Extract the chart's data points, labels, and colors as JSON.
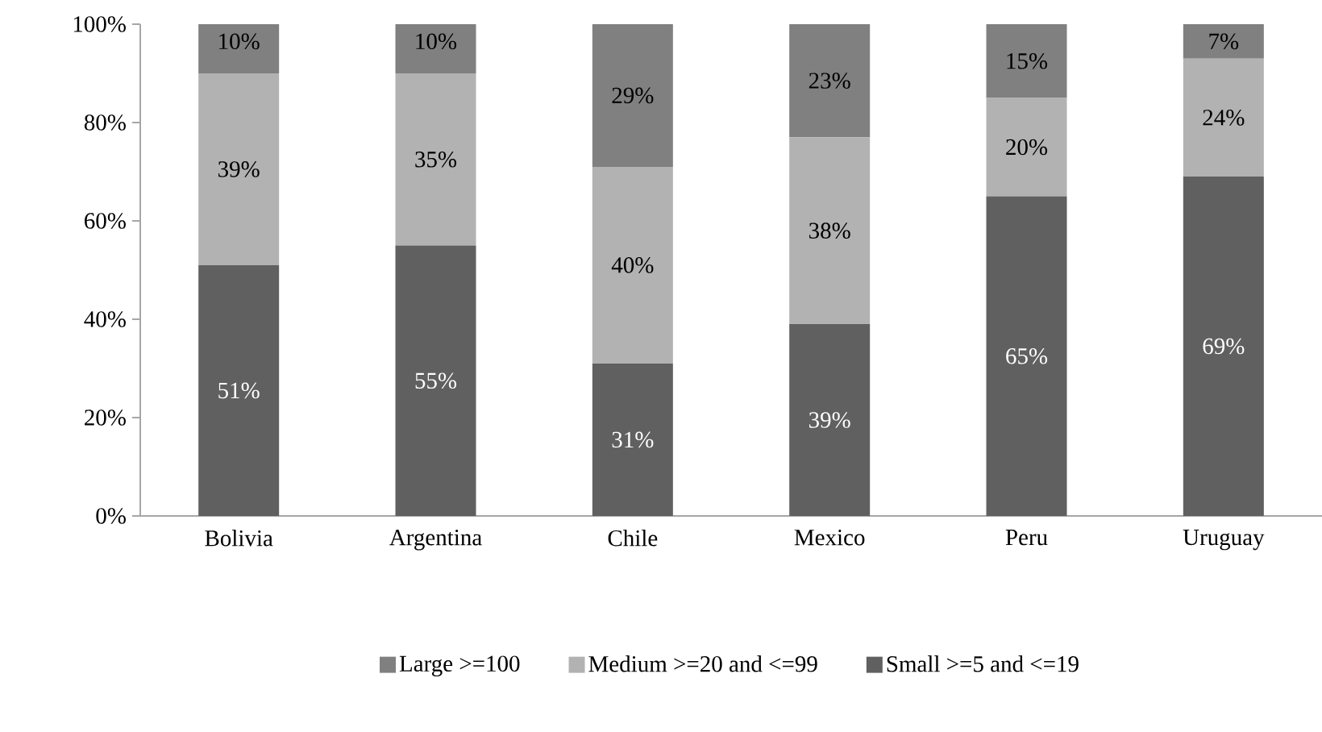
{
  "chart_data": {
    "type": "bar",
    "stacked": true,
    "categories": [
      "Bolivia",
      "Argentina",
      "Chile",
      "Mexico",
      "Peru",
      "Uruguay"
    ],
    "series": [
      {
        "name": "Small >=5 and <=19",
        "color": "#606060",
        "values": [
          51,
          55,
          31,
          39,
          65,
          69
        ],
        "value_labels": [
          "51%",
          "55%",
          "31%",
          "39%",
          "65%",
          "69%"
        ]
      },
      {
        "name": "Medium >=20 and <=99",
        "color": "#b2b2b2",
        "values": [
          39,
          35,
          40,
          38,
          20,
          24
        ],
        "value_labels": [
          "39%",
          "35%",
          "40%",
          "38%",
          "20%",
          "24%"
        ]
      },
      {
        "name": "Large >=100",
        "color": "#808080",
        "values": [
          10,
          10,
          29,
          23,
          15,
          7
        ],
        "value_labels": [
          "10%",
          "10%",
          "29%",
          "23%",
          "15%",
          "7%"
        ]
      }
    ],
    "ylim": [
      0,
      100
    ],
    "yticks": [
      {
        "value": 0,
        "label": "0%"
      },
      {
        "value": 20,
        "label": "20%"
      },
      {
        "value": 40,
        "label": "40%"
      },
      {
        "value": 60,
        "label": "60%"
      },
      {
        "value": 80,
        "label": "80%"
      },
      {
        "value": 100,
        "label": "100%"
      }
    ],
    "legend": "bottom",
    "grid": false
  }
}
